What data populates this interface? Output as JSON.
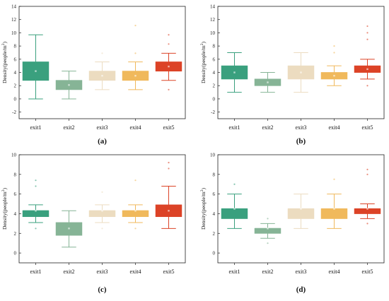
{
  "colors": {
    "exit1": "#3aa07e",
    "exit2": "#86b496",
    "exit3": "#ecdcc0",
    "exit4": "#f0b95c",
    "exit5": "#dc4327"
  },
  "chart_data": [
    {
      "type": "box",
      "panel_label": "(a)",
      "ylabel": "Density(people/m",
      "ylabel_sup": "2",
      "ylabel_end": ")",
      "categories": [
        "exit1",
        "exit2",
        "exit3",
        "exit4",
        "exit5"
      ],
      "ylim": [
        -3,
        14
      ],
      "yticks": [
        -2,
        0,
        2,
        4,
        6,
        8,
        10,
        12,
        14
      ],
      "boxes": [
        {
          "q1": 2.8,
          "median": 4.2,
          "q3": 5.6,
          "whisker_low": 0.0,
          "whisker_high": 9.7,
          "outliers": []
        },
        {
          "q1": 1.4,
          "median": 2.1,
          "q3": 2.8,
          "whisker_low": 0.0,
          "whisker_high": 4.2,
          "outliers": []
        },
        {
          "q1": 2.8,
          "median": 3.5,
          "q3": 4.2,
          "whisker_low": 1.4,
          "whisker_high": 5.6,
          "outliers": [
            6.9
          ]
        },
        {
          "q1": 2.8,
          "median": 3.5,
          "q3": 4.2,
          "whisker_low": 1.4,
          "whisker_high": 5.6,
          "outliers": [
            6.9,
            11.1
          ]
        },
        {
          "q1": 4.2,
          "median": 4.9,
          "q3": 5.6,
          "whisker_low": 2.8,
          "whisker_high": 6.9,
          "outliers": [
            8.3,
            9.7,
            1.4
          ]
        }
      ]
    },
    {
      "type": "box",
      "panel_label": "(b)",
      "ylabel": "Density(people/m",
      "ylabel_sup": "2",
      "ylabel_end": ")",
      "categories": [
        "exit1",
        "exit2",
        "exit3",
        "exit4",
        "exit5"
      ],
      "ylim": [
        -3,
        14
      ],
      "yticks": [
        -2,
        0,
        2,
        4,
        6,
        8,
        10,
        12,
        14
      ],
      "boxes": [
        {
          "q1": 3.0,
          "median": 4.0,
          "q3": 5.0,
          "whisker_low": 1.0,
          "whisker_high": 7.0,
          "outliers": []
        },
        {
          "q1": 2.0,
          "median": 2.5,
          "q3": 3.0,
          "whisker_low": 1.0,
          "whisker_high": 4.0,
          "outliers": []
        },
        {
          "q1": 3.0,
          "median": 4.0,
          "q3": 5.0,
          "whisker_low": 1.0,
          "whisker_high": 7.0,
          "outliers": []
        },
        {
          "q1": 3.0,
          "median": 3.5,
          "q3": 4.0,
          "whisker_low": 2.0,
          "whisker_high": 5.0,
          "outliers": [
            7.0,
            8.0
          ]
        },
        {
          "q1": 4.0,
          "median": 4.5,
          "q3": 5.0,
          "whisker_low": 3.0,
          "whisker_high": 6.0,
          "outliers": [
            9.0,
            10.0,
            11.0,
            2.0
          ]
        }
      ]
    },
    {
      "type": "box",
      "panel_label": "(c)",
      "ylabel": "Density(people/m",
      "ylabel_sup": "2",
      "ylabel_end": ")",
      "categories": [
        "exit1",
        "exit2",
        "exit3",
        "exit4",
        "exit5"
      ],
      "ylim": [
        -1,
        10
      ],
      "yticks": [
        0,
        2,
        4,
        6,
        8,
        10
      ],
      "boxes": [
        {
          "q1": 3.7,
          "median": 4.3,
          "q3": 4.3,
          "whisker_low": 3.1,
          "whisker_high": 4.9,
          "outliers": [
            6.8,
            7.4,
            2.5
          ]
        },
        {
          "q1": 1.8,
          "median": 2.5,
          "q3": 3.1,
          "whisker_low": 0.6,
          "whisker_high": 4.3,
          "outliers": []
        },
        {
          "q1": 3.7,
          "median": 4.3,
          "q3": 4.3,
          "whisker_low": 3.1,
          "whisker_high": 4.9,
          "outliers": [
            6.2,
            2.5
          ]
        },
        {
          "q1": 3.7,
          "median": 4.3,
          "q3": 4.3,
          "whisker_low": 3.1,
          "whisker_high": 4.9,
          "outliers": [
            7.4,
            2.5
          ]
        },
        {
          "q1": 3.7,
          "median": 4.3,
          "q3": 4.9,
          "whisker_low": 2.5,
          "whisker_high": 6.8,
          "outliers": [
            8.6,
            9.2
          ]
        }
      ]
    },
    {
      "type": "box",
      "panel_label": "(d)",
      "ylabel": "Density(people/m",
      "ylabel_sup": "2",
      "ylabel_end": ")",
      "categories": [
        "exit1",
        "exit2",
        "exit3",
        "exit4",
        "exit5"
      ],
      "ylim": [
        -1,
        10
      ],
      "yticks": [
        0,
        2,
        4,
        6,
        8,
        10
      ],
      "boxes": [
        {
          "q1": 3.5,
          "median": 4.5,
          "q3": 4.5,
          "whisker_low": 2.5,
          "whisker_high": 6.0,
          "outliers": [
            7.0
          ]
        },
        {
          "q1": 2.0,
          "median": 2.5,
          "q3": 2.5,
          "whisker_low": 1.5,
          "whisker_high": 3.0,
          "outliers": [
            3.5,
            1.0
          ]
        },
        {
          "q1": 3.5,
          "median": 4.5,
          "q3": 4.5,
          "whisker_low": 2.5,
          "whisker_high": 6.0,
          "outliers": []
        },
        {
          "q1": 3.5,
          "median": 4.5,
          "q3": 4.5,
          "whisker_low": 2.5,
          "whisker_high": 6.0,
          "outliers": [
            7.5
          ]
        },
        {
          "q1": 4.0,
          "median": 4.5,
          "q3": 4.5,
          "whisker_low": 3.5,
          "whisker_high": 5.0,
          "outliers": [
            8.0,
            8.5,
            3.0
          ]
        }
      ]
    }
  ]
}
